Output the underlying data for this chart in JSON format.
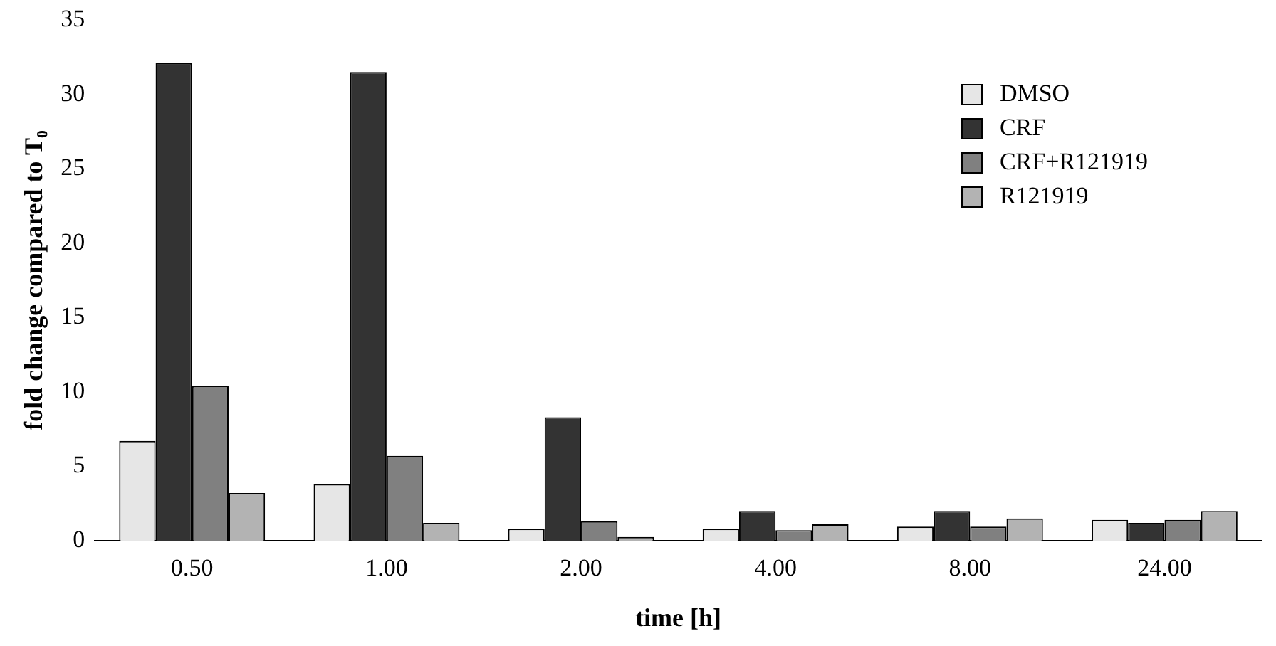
{
  "chart_data": {
    "type": "bar",
    "xlabel": "time [h]",
    "ylabel": "fold change compared to T₀",
    "categories": [
      "0.50",
      "1.00",
      "2.00",
      "4.00",
      "8.00",
      "24.00"
    ],
    "series": [
      {
        "name": "DMSO",
        "color": "#e6e6e6",
        "values": [
          6.7,
          3.8,
          0.8,
          0.8,
          0.95,
          1.4
        ]
      },
      {
        "name": "CRF",
        "color": "#333333",
        "values": [
          32.1,
          31.5,
          8.3,
          2.0,
          2.0,
          1.2
        ]
      },
      {
        "name": "CRF+R121919",
        "color": "#808080",
        "values": [
          10.4,
          5.7,
          1.3,
          0.7,
          0.95,
          1.4
        ]
      },
      {
        "name": "R121919",
        "color": "#b3b3b3",
        "values": [
          3.2,
          1.2,
          0.25,
          1.1,
          1.5,
          2.0
        ]
      }
    ],
    "ylim": [
      0,
      35
    ],
    "yticks": [
      0,
      5,
      10,
      15,
      20,
      25,
      30,
      35
    ],
    "grid": false,
    "legend": "top right"
  }
}
